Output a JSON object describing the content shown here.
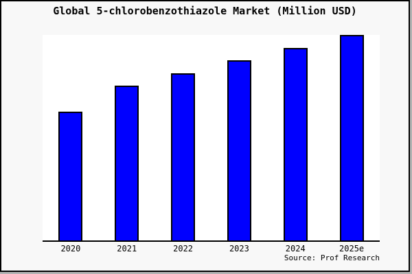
{
  "source_credit": "Source: Prof Research",
  "colors": {
    "bar_fill": "#0000ff",
    "bar_border": "#000000",
    "plot_background": "#ffffff",
    "canvas_background": "#f8f8f8",
    "frame_border": "#000000",
    "shadow": "#b3b3b3"
  },
  "chart_data": {
    "type": "bar",
    "title": "Global 5-chlorobenzothiazole Market (Million USD)",
    "categories": [
      "2020",
      "2021",
      "2022",
      "2023",
      "2024",
      "2025e"
    ],
    "values": [
      62.8,
      75.2,
      81.4,
      87.7,
      93.7,
      100
    ],
    "value_note": "chart has no y-axis or value labels; values are relative, normalized to 2025e = 100",
    "unit": "Million USD",
    "xlabel": "",
    "ylabel": "",
    "ylim": [
      0,
      100
    ],
    "grid": false,
    "legend_position": "none",
    "bar_color": "#0000ff"
  }
}
